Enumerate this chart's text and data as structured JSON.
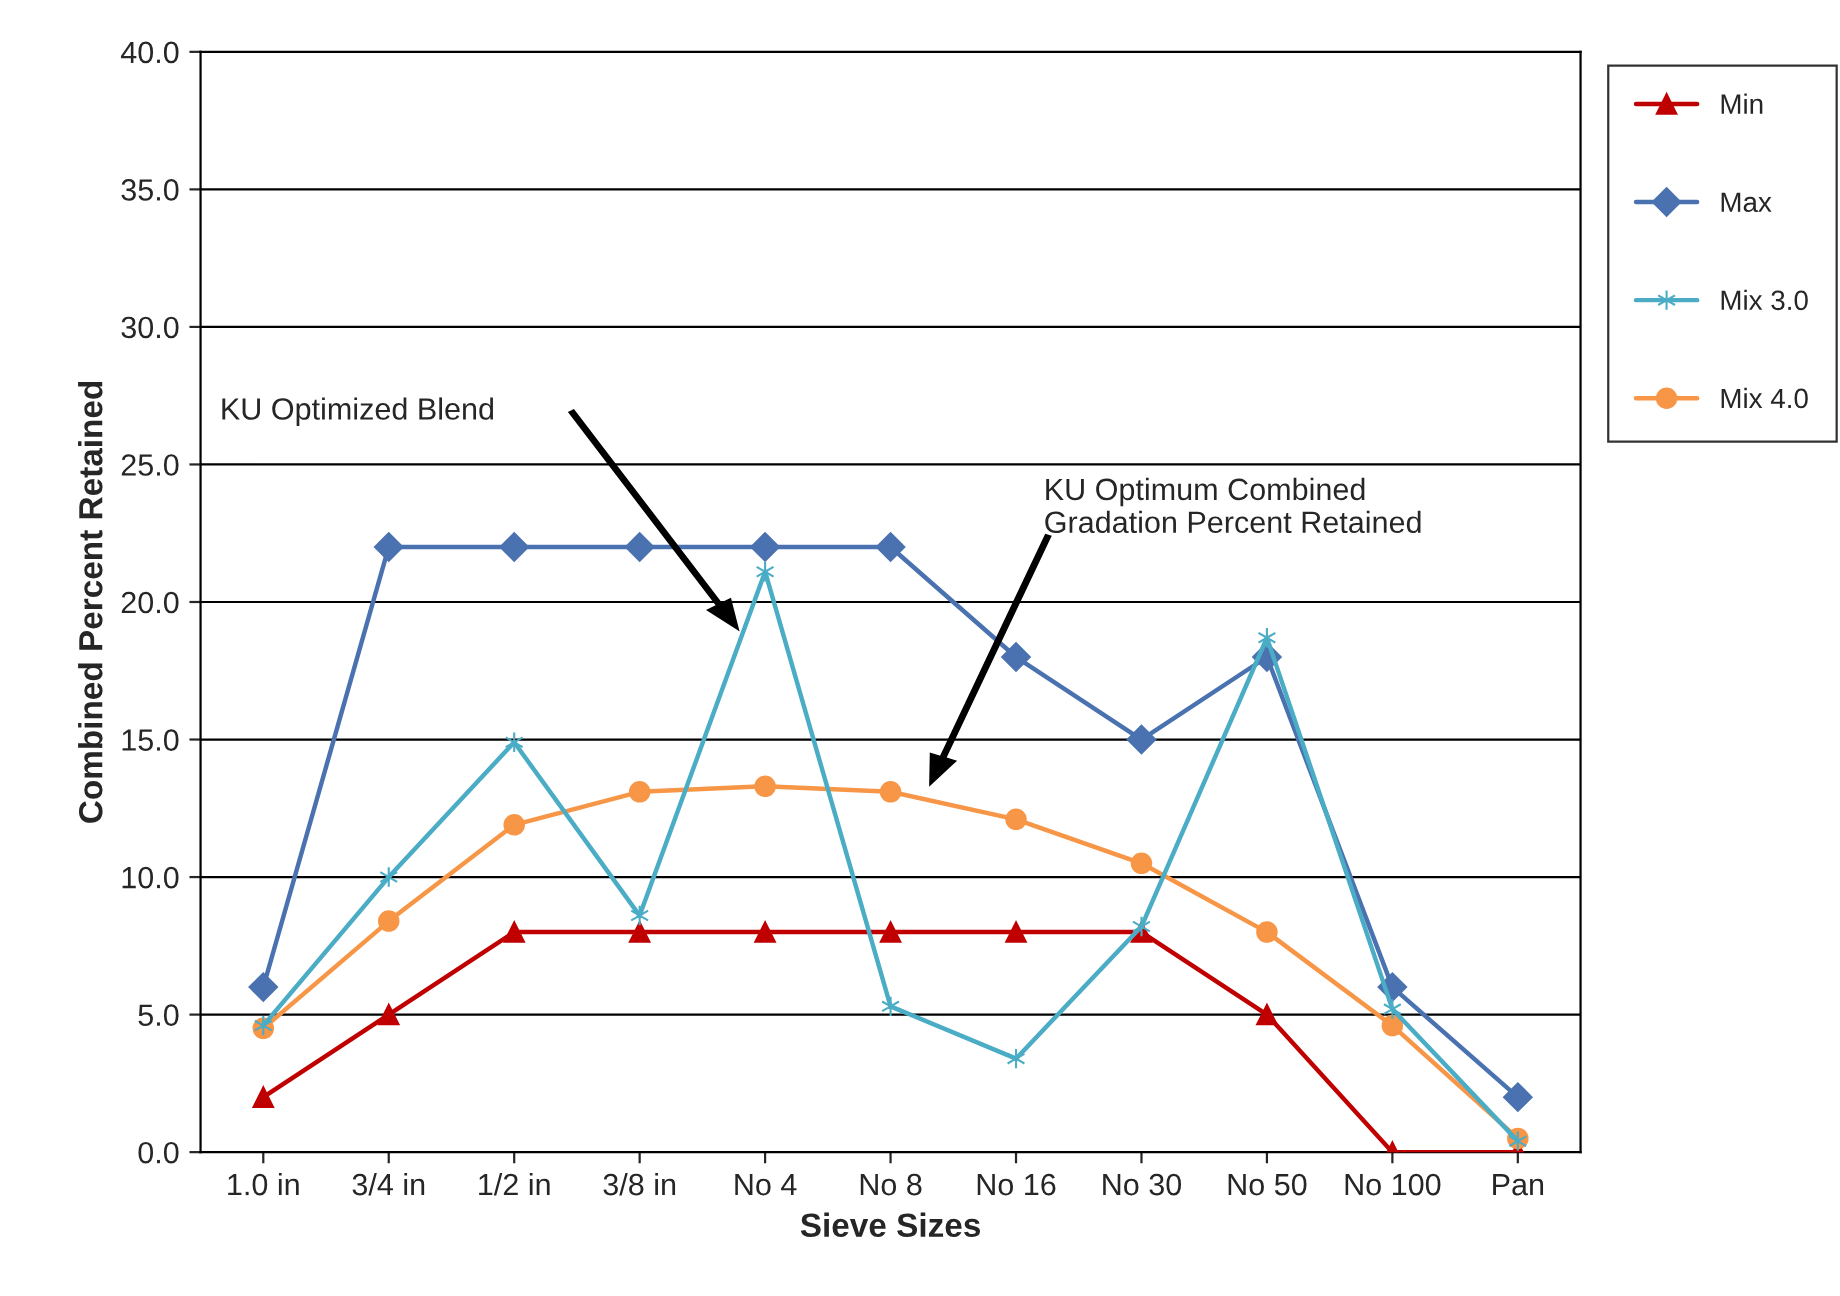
{
  "chart_data": {
    "type": "line",
    "xlabel": "Sieve Sizes",
    "ylabel": "Combined Percent Retained",
    "categories": [
      "1.0 in",
      "3/4 in",
      "1/2 in",
      "3/8 in",
      "No 4",
      "No 8",
      "No 16",
      "No 30",
      "No 50",
      "No 100",
      "Pan"
    ],
    "series": [
      {
        "name": "Min",
        "color": "#c00000",
        "marker": "triangle",
        "values": [
          2,
          5,
          8,
          8,
          8,
          8,
          8,
          8,
          5,
          0,
          0
        ]
      },
      {
        "name": "Max",
        "color": "#4a72b0",
        "marker": "diamond",
        "values": [
          6,
          22,
          22,
          22,
          22,
          22,
          18,
          15,
          18,
          6,
          2
        ]
      },
      {
        "name": "Mix 3.0",
        "color": "#4bacc6",
        "marker": "cross",
        "values": [
          4.6,
          10.0,
          14.9,
          8.6,
          21.1,
          5.3,
          3.4,
          8.2,
          18.7,
          5.2,
          0.4
        ]
      },
      {
        "name": "Mix 4.0",
        "color": "#f79646",
        "marker": "circle",
        "values": [
          4.5,
          8.4,
          11.9,
          13.1,
          13.3,
          13.1,
          12.1,
          10.5,
          8.0,
          4.6,
          0.5
        ]
      }
    ],
    "ylim": [
      0,
      40
    ],
    "yticks": [
      {
        "value": 0,
        "label": "0.0"
      },
      {
        "value": 5,
        "label": "5.0"
      },
      {
        "value": 10,
        "label": "10.0"
      },
      {
        "value": 15,
        "label": "15.0"
      },
      {
        "value": 20,
        "label": "20.0"
      },
      {
        "value": 25,
        "label": "25.0"
      },
      {
        "value": 30,
        "label": "30.0"
      },
      {
        "value": 35,
        "label": "35.0"
      },
      {
        "value": 40,
        "label": "40.0"
      }
    ],
    "grid": "y",
    "legend": "right",
    "line_style": "solid",
    "annotations": [
      "KU Optimized Blend",
      "KU Optimum Combined\nGradation Percent Retained"
    ]
  }
}
